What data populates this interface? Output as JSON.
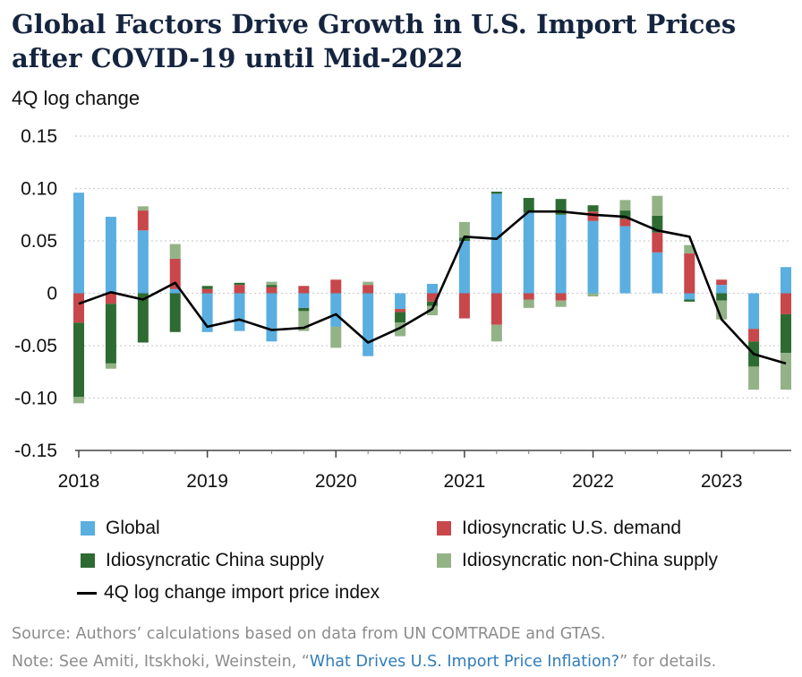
{
  "chart_data": {
    "type": "bar",
    "title": "Global Factors Drive Growth in U.S. Import Prices after COVID-19 until Mid-2022",
    "ylabel": "4Q log change",
    "ylim": [
      -0.15,
      0.15
    ],
    "y_ticks": [
      "0.15",
      "0.10",
      "0.05",
      "0",
      "-0.05",
      "-0.10",
      "-0.15"
    ],
    "y_tick_values": [
      0.15,
      0.1,
      0.05,
      0,
      -0.05,
      -0.1,
      -0.15
    ],
    "x_ticks": [
      "2018",
      "2019",
      "2020",
      "2021",
      "2022",
      "2023"
    ],
    "x_tick_values": [
      2018,
      2019,
      2020,
      2021,
      2022,
      2023
    ],
    "x_range": [
      2018,
      2023.5
    ],
    "grid": true,
    "x": [
      2018.0,
      2018.25,
      2018.5,
      2018.75,
      2019.0,
      2019.25,
      2019.5,
      2019.75,
      2020.0,
      2020.25,
      2020.5,
      2020.75,
      2021.0,
      2021.25,
      2021.5,
      2021.75,
      2022.0,
      2022.25,
      2022.5,
      2022.75,
      2023.0,
      2023.25,
      2023.5
    ],
    "colors": {
      "Global": "#5aaee0",
      "Idiosyncratic U.S. demand": "#c8474b",
      "Idiosyncratic China supply": "#2e6b32",
      "Idiosyncratic non-China supply": "#93b386",
      "4Q log change import price index": "#000000"
    },
    "series": [
      {
        "name": "Global",
        "values": [
          0.096,
          0.073,
          0.06,
          0.004,
          -0.037,
          -0.036,
          -0.046,
          -0.014,
          -0.032,
          -0.06,
          -0.015,
          0.009,
          0.05,
          0.095,
          0.077,
          0.075,
          0.069,
          0.064,
          0.039,
          -0.006,
          0.008,
          -0.034,
          0.025
        ]
      },
      {
        "name": "Idiosyncratic U.S. demand",
        "values": [
          -0.028,
          -0.01,
          0.019,
          0.029,
          0.004,
          0.008,
          0.006,
          0.007,
          0.013,
          0.008,
          -0.003,
          -0.008,
          -0.024,
          -0.03,
          -0.006,
          -0.007,
          0.009,
          0.007,
          0.019,
          0.038,
          0.005,
          -0.012,
          -0.02
        ]
      },
      {
        "name": "Idiosyncratic China supply",
        "values": [
          -0.071,
          -0.057,
          -0.047,
          -0.037,
          0.003,
          0.002,
          0.002,
          -0.003,
          0.0,
          0.0,
          -0.01,
          -0.004,
          0.003,
          0.002,
          0.014,
          0.015,
          0.006,
          0.008,
          0.016,
          -0.002,
          -0.007,
          -0.024,
          -0.037
        ]
      },
      {
        "name": "Idiosyncratic non-China supply",
        "values": [
          -0.006,
          -0.005,
          0.004,
          0.014,
          0.0,
          0.0,
          0.003,
          -0.019,
          -0.02,
          0.003,
          -0.013,
          -0.009,
          0.015,
          -0.016,
          -0.008,
          -0.006,
          -0.003,
          0.01,
          0.019,
          0.008,
          -0.018,
          -0.022,
          -0.035
        ]
      },
      {
        "name": "4Q log change import price index",
        "type": "line",
        "values": [
          -0.01,
          0.001,
          -0.006,
          0.01,
          -0.032,
          -0.025,
          -0.035,
          -0.033,
          -0.02,
          -0.047,
          -0.033,
          -0.015,
          0.054,
          0.052,
          0.078,
          0.078,
          0.075,
          0.073,
          0.06,
          0.054,
          -0.025,
          -0.058,
          -0.067
        ]
      }
    ]
  },
  "legend": {
    "global": "Global",
    "us_demand": "Idiosyncratic U.S. demand",
    "china": "Idiosyncratic China supply",
    "nonchina": "Idiosyncratic non-China supply",
    "line": "4Q log change import price index"
  },
  "source": {
    "line1": "Source: Authors’ calculations based on data from UN COMTRADE and GTAS.",
    "note_prefix": "Note: See Amiti, Itskhoki, Weinstein, “",
    "note_link": "What Drives U.S. Import Price Inflation?",
    "note_suffix": "” for details."
  }
}
